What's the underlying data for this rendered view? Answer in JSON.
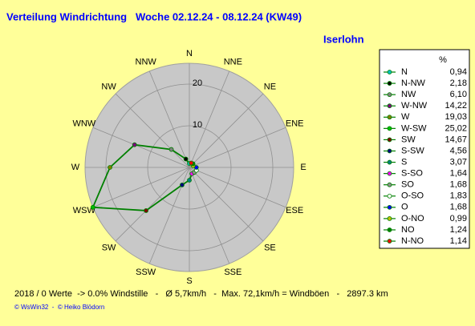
{
  "chart_data": {
    "type": "radar",
    "title": "Verteilung Windrichtung   Woche 02.12.24 - 08.12.24 (KW49)",
    "subtitle": "Iserlohn",
    "directions": [
      "N",
      "NNE",
      "NE",
      "ENE",
      "E",
      "ESE",
      "SE",
      "SSE",
      "S",
      "SSW",
      "SW",
      "WSW",
      "W",
      "WNW",
      "NW",
      "NNW"
    ],
    "legend_unit": "%",
    "categories": [
      "N",
      "N-NW",
      "NW",
      "W-NW",
      "W",
      "W-SW",
      "SW",
      "S-SW",
      "S",
      "S-SO",
      "SO",
      "O-SO",
      "O",
      "O-NO",
      "NO",
      "N-NO"
    ],
    "values": [
      0.94,
      2.18,
      6.1,
      14.22,
      19.03,
      25.02,
      14.67,
      4.56,
      3.07,
      1.64,
      1.68,
      1.83,
      1.68,
      0.99,
      1.24,
      1.14
    ],
    "value_labels": [
      "0,94",
      "2,18",
      "6,10",
      "14,22",
      "19,03",
      "25,02",
      "14,67",
      "4,56",
      "3,07",
      "1,64",
      "1,68",
      "1,83",
      "1,68",
      "0,99",
      "1,24",
      "1,14"
    ],
    "colors": [
      "#00c0c0",
      "#000000",
      "#808080",
      "#800080",
      "#808000",
      "#00c000",
      "#800000",
      "#000080",
      "#008080",
      "#ff00ff",
      "#909090",
      "#ffffff",
      "#0000ff",
      "#c0c000",
      "#008000",
      "#ff0000"
    ],
    "line_color": "#008000",
    "rlim": [
      0,
      25
    ],
    "rticks": [
      10,
      20
    ],
    "footer": "2018 / 0 Werte  -> 0.0% Windstille   -   Ø 5,7km/h   -  Max. 72,1km/h = Windböen   -   2897.3 km",
    "credits": "© WsWin32  -  © Heiko Blödorn"
  }
}
